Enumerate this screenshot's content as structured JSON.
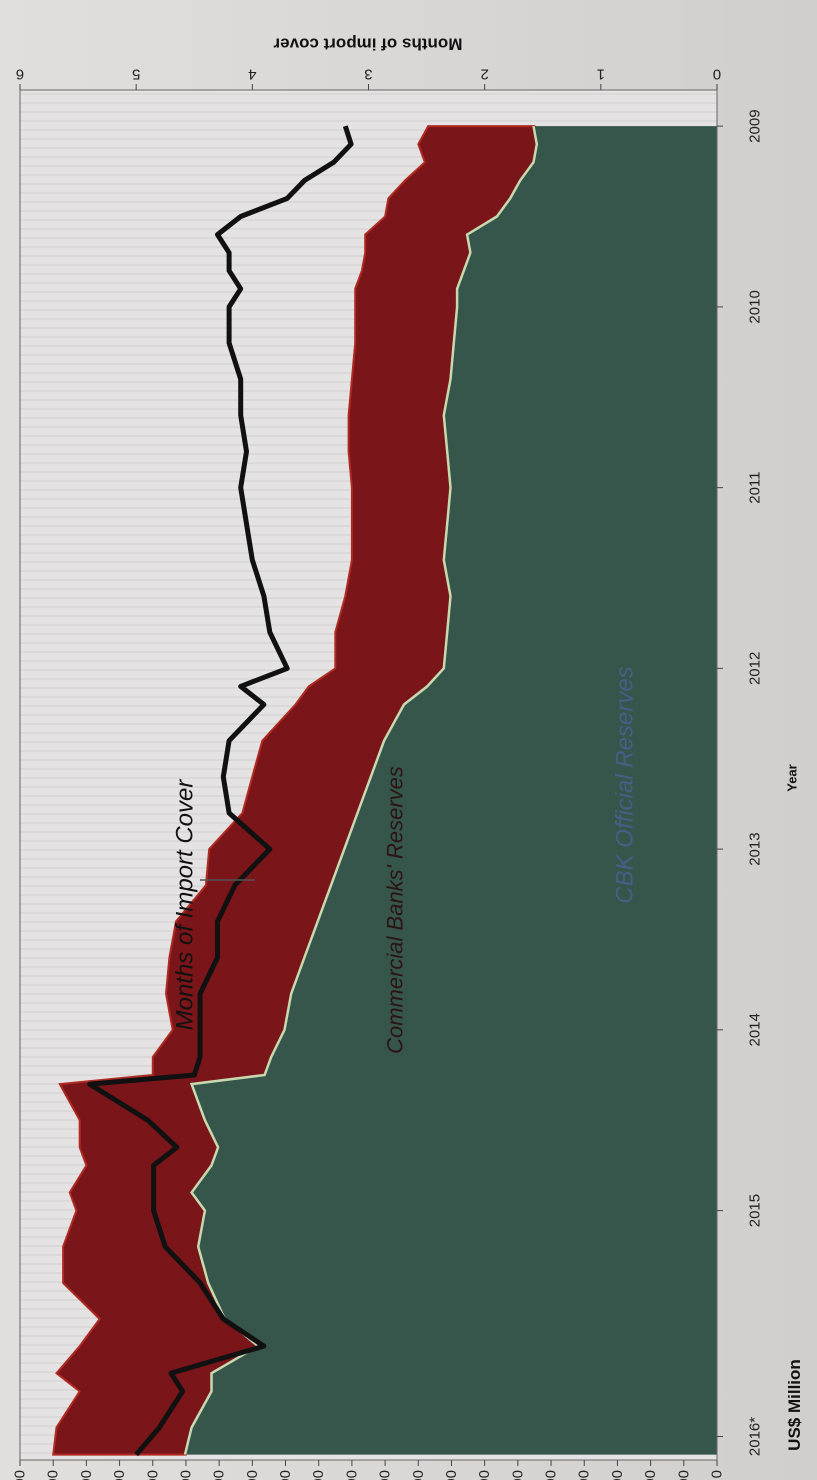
{
  "chart_data": {
    "type": "area",
    "orientation": "rotated-90-clockwise",
    "x_tick_labels": [
      "2009",
      "2010",
      "2011",
      "2012",
      "2013",
      "2014",
      "2015",
      "2016*"
    ],
    "xlabel": "Year",
    "ylabel_left": "US$ Million",
    "ylabel_right": "Months of import cover",
    "ylim_left": [
      0,
      10500
    ],
    "ylim_right": [
      0,
      6
    ],
    "left_ticks": [
      0,
      500,
      1000,
      1500,
      2000,
      2500,
      3000,
      3500,
      4000,
      4500,
      5000,
      5500,
      6000,
      6500,
      7000,
      7500,
      8000,
      8500,
      9000,
      9500,
      10000,
      10500
    ],
    "left_tick_labels": [
      "0",
      "500",
      "1,000",
      "1,500",
      "2,000",
      "2,500",
      "3,000",
      "3,500",
      "4,000",
      "4,500",
      "5,000",
      "5,500",
      "6,000",
      "6,500",
      "7,000",
      "7,500",
      "8,000",
      "8,500",
      "9,000",
      "9,500",
      "10,000",
      "10,500"
    ],
    "right_ticks": [
      0,
      1,
      2,
      3,
      4,
      5,
      6
    ],
    "right_tick_labels": [
      "0",
      "1",
      "2",
      "3",
      "4",
      "5",
      "6"
    ],
    "x": [
      2009.0,
      2009.1,
      2009.2,
      2009.3,
      2009.4,
      2009.5,
      2009.6,
      2009.7,
      2009.8,
      2009.9,
      2010.0,
      2010.2,
      2010.4,
      2010.6,
      2010.8,
      2011.0,
      2011.2,
      2011.4,
      2011.6,
      2011.8,
      2012.0,
      2012.1,
      2012.2,
      2012.4,
      2012.6,
      2012.8,
      2013.0,
      2013.2,
      2013.4,
      2013.6,
      2013.8,
      2014.0,
      2014.15,
      2014.25,
      2014.3,
      2014.5,
      2014.65,
      2014.75,
      2014.9,
      2015.0,
      2015.2,
      2015.4,
      2015.6,
      2015.75,
      2015.9,
      2016.0,
      2016.2,
      2016.35
    ],
    "series": [
      {
        "name": "CBK Official Reserves",
        "color": "#36564b",
        "values": [
          2750,
          2700,
          2750,
          2950,
          3100,
          3300,
          3750,
          3700,
          3800,
          3900,
          3900,
          3950,
          4000,
          4100,
          4050,
          4000,
          4050,
          4100,
          4000,
          4050,
          4100,
          4350,
          4700,
          5000,
          5200,
          5400,
          5600,
          5800,
          6000,
          6200,
          6400,
          6500,
          6700,
          6800,
          7900,
          7700,
          7500,
          7600,
          7900,
          7700,
          7800,
          7650,
          7400,
          6900,
          7600,
          7600,
          7900,
          8000
        ]
      },
      {
        "name": "Commercial Banks' Reserves",
        "color": "#7a1519",
        "values": [
          1600,
          1800,
          1650,
          1750,
          1850,
          1700,
          1550,
          1600,
          1550,
          1550,
          1550,
          1500,
          1500,
          1450,
          1500,
          1500,
          1450,
          1400,
          1600,
          1700,
          1650,
          1800,
          1650,
          1850,
          1800,
          1750,
          2050,
          1900,
          2150,
          2050,
          1900,
          1700,
          1800,
          1700,
          2000,
          1900,
          2100,
          1900,
          1850,
          1950,
          2050,
          2200,
          1900,
          2700,
          2350,
          2000,
          2050,
          2000
        ]
      }
    ],
    "import_cover": {
      "name": "Months of Import Cover",
      "color": "#111111",
      "values": [
        3.2,
        3.15,
        3.3,
        3.55,
        3.7,
        4.1,
        4.3,
        4.2,
        4.2,
        4.1,
        4.2,
        4.2,
        4.1,
        4.1,
        4.05,
        4.1,
        4.05,
        4.0,
        3.9,
        3.85,
        3.7,
        4.1,
        3.9,
        4.2,
        4.25,
        4.2,
        3.85,
        4.15,
        4.3,
        4.3,
        4.45,
        4.45,
        4.45,
        4.5,
        5.4,
        4.9,
        4.65,
        4.85,
        4.85,
        4.85,
        4.75,
        4.45,
        4.25,
        3.9,
        4.7,
        4.6,
        4.8,
        5.0
      ]
    },
    "annotations": {
      "months_label": "Months of Import Cover",
      "commercial_label": "Commercial Banks' Reserves",
      "cbk_label": "CBK Official Reserves"
    }
  }
}
